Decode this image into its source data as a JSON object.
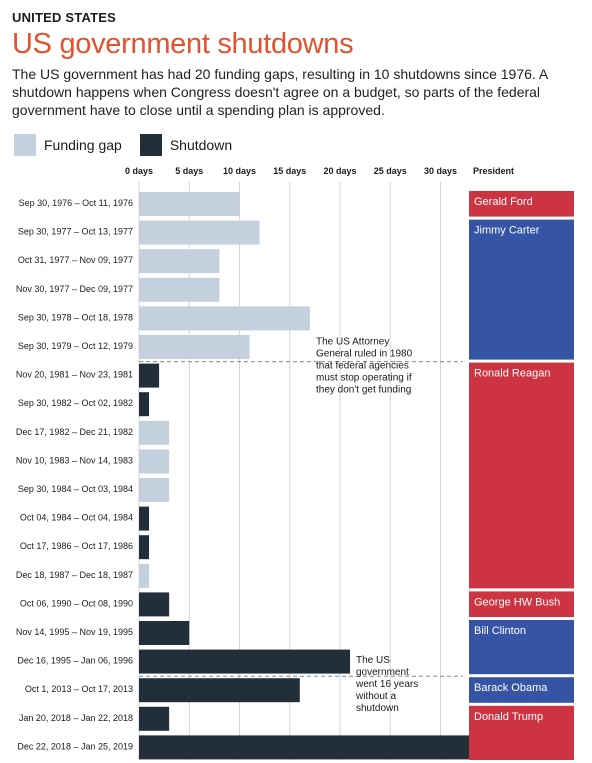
{
  "header": {
    "kicker": "UNITED STATES",
    "title": "US government shutdowns",
    "subtitle": "The US government has had 20 funding gaps, resulting in 10 shutdowns since 1976. A shutdown happens when Congress doesn't agree on a budget, so parts of the federal government have to close until a spending plan is approved."
  },
  "legend": {
    "items": [
      {
        "label": "Funding gap",
        "color": "#c5d0de"
      },
      {
        "label": "Shutdown",
        "color": "#232e3b"
      }
    ]
  },
  "colors": {
    "funding_gap": "#c5d0de",
    "shutdown": "#232e3b",
    "republican": "#cd3442",
    "democrat": "#3554a3",
    "grid": "#d4d4d4"
  },
  "chart_data": {
    "type": "bar",
    "orientation": "horizontal",
    "x_ticks": [
      "0 days",
      "5 days",
      "10 days",
      "15 days",
      "20 days",
      "25 days",
      "30 days"
    ],
    "xlim": [
      0,
      33
    ],
    "president_header": "President",
    "categories": [
      "Sep 30, 1976 – Oct 11, 1976",
      "Sep 30, 1977 – Oct 13, 1977",
      "Oct 31, 1977 – Nov 09, 1977",
      "Nov 30, 1977 – Dec 09, 1977",
      "Sep 30, 1978 – Oct 18, 1978",
      "Sep 30, 1979 – Oct 12, 1979",
      "Nov 20, 1981 – Nov 23, 1981",
      "Sep 30, 1982 – Oct 02, 1982",
      "Dec 17, 1982 – Dec 21, 1982",
      "Nov 10, 1983 – Nov 14, 1983",
      "Sep 30, 1984 – Oct 03, 1984",
      "Oct 04, 1984 – Oct 04, 1984",
      "Oct 17, 1986 – Oct 17, 1986",
      "Dec 18, 1987 – Dec 18, 1987",
      "Oct 06, 1990 – Oct 08, 1990",
      "Nov 14, 1995 – Nov 19, 1995",
      "Dec 16, 1995 – Jan 06, 1996",
      "Oct 1, 2013 – Oct 17, 2013",
      "Jan 20, 2018 – Jan 22, 2018",
      "Dec 22, 2018 – Jan 25, 2019"
    ],
    "values": [
      10,
      12,
      8,
      8,
      17,
      11,
      2,
      1,
      3,
      3,
      3,
      1,
      1,
      1,
      3,
      5,
      21,
      16,
      3,
      34
    ],
    "types": [
      "gap",
      "gap",
      "gap",
      "gap",
      "gap",
      "gap",
      "shutdown",
      "shutdown",
      "gap",
      "gap",
      "gap",
      "shutdown",
      "shutdown",
      "gap",
      "shutdown",
      "shutdown",
      "shutdown",
      "shutdown",
      "shutdown",
      "shutdown"
    ],
    "presidents": [
      {
        "name": "Gerald Ford",
        "start": 0,
        "end": 0,
        "party": "republican"
      },
      {
        "name": "Jimmy Carter",
        "start": 1,
        "end": 5,
        "party": "democrat"
      },
      {
        "name": "Ronald Reagan",
        "start": 6,
        "end": 13,
        "party": "republican"
      },
      {
        "name": "George HW Bush",
        "start": 14,
        "end": 14,
        "party": "republican"
      },
      {
        "name": "Bill Clinton",
        "start": 15,
        "end": 16,
        "party": "democrat"
      },
      {
        "name": "Barack Obama",
        "start": 17,
        "end": 17,
        "party": "democrat"
      },
      {
        "name": "Donald Trump",
        "start": 18,
        "end": 19,
        "party": "republican"
      }
    ],
    "annotations": [
      {
        "after_row": 5,
        "lines": [
          "The US Attorney",
          "General ruled in 1980",
          "that federal agencies",
          "must stop operating if",
          "they don't get funding"
        ]
      },
      {
        "after_row": 16,
        "lines": [
          "The US",
          "government",
          "went 16 years",
          "without a",
          "shutdown"
        ]
      }
    ]
  }
}
